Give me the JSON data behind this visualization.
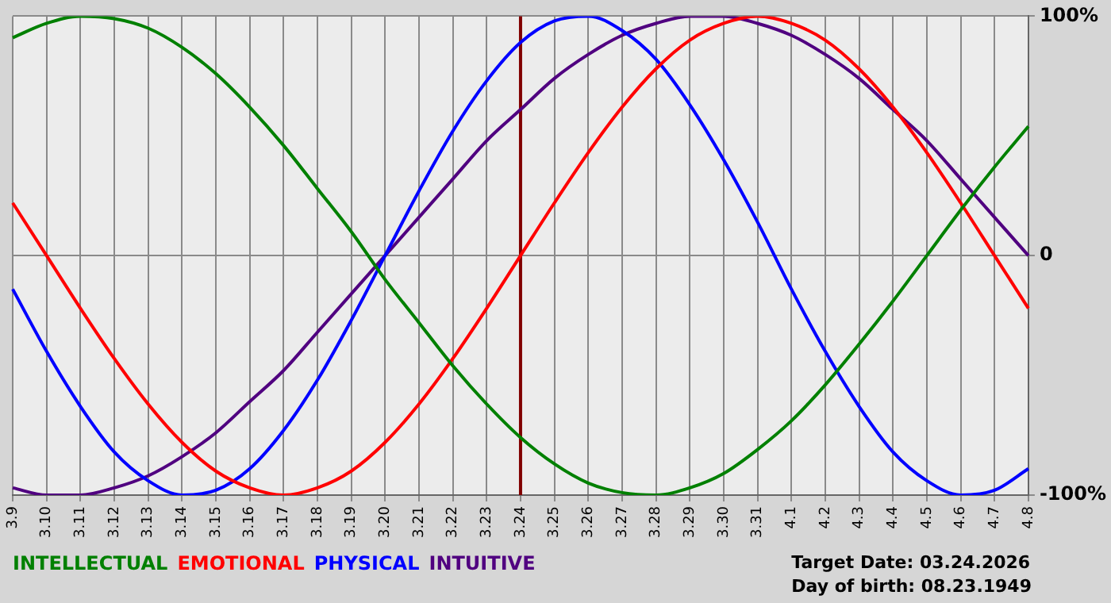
{
  "chart_data": {
    "type": "line",
    "categories": [
      "3.9",
      "3.10",
      "3.11",
      "3.12",
      "3.13",
      "3.14",
      "3.15",
      "3.16",
      "3.17",
      "3.18",
      "3.19",
      "3.20",
      "3.21",
      "3.22",
      "3.23",
      "3.24",
      "3.25",
      "3.26",
      "3.27",
      "3.28",
      "3.29",
      "3.30",
      "3.31",
      "4.1",
      "4.2",
      "4.3",
      "4.4",
      "4.5",
      "4.6",
      "4.7",
      "4.8"
    ],
    "series": [
      {
        "name": "INTELLECTUAL",
        "color": "#008000",
        "values": [
          91,
          97,
          100,
          99,
          95,
          87,
          76,
          62,
          46,
          28,
          10,
          -10,
          -28,
          -46,
          -62,
          -76,
          -87,
          -95,
          -99,
          -100,
          -97,
          -91,
          -81,
          -69,
          -54,
          -37,
          -19,
          0,
          19,
          37,
          54
        ]
      },
      {
        "name": "EMOTIONAL",
        "color": "#ff0000",
        "values": [
          22,
          0,
          -22,
          -43,
          -62,
          -78,
          -90,
          -97,
          -100,
          -97,
          -90,
          -78,
          -62,
          -43,
          -22,
          0,
          22,
          43,
          62,
          78,
          90,
          97,
          100,
          97,
          90,
          78,
          62,
          43,
          22,
          0,
          -22
        ]
      },
      {
        "name": "PHYSICAL",
        "color": "#0000ff",
        "values": [
          -14,
          -40,
          -63,
          -82,
          -94,
          -100,
          -98,
          -89,
          -73,
          -52,
          -27,
          0,
          27,
          52,
          73,
          89,
          98,
          100,
          94,
          82,
          63,
          40,
          14,
          -14,
          -40,
          -63,
          -82,
          -94,
          -100,
          -98,
          -89
        ]
      },
      {
        "name": "INTUITIVE",
        "color": "#500080",
        "values": [
          -97,
          -100,
          -100,
          -97,
          -92,
          -84,
          -74,
          -61,
          -48,
          -32,
          -16,
          0,
          16,
          32,
          48,
          61,
          74,
          84,
          92,
          97,
          100,
          100,
          97,
          92,
          84,
          74,
          61,
          48,
          32,
          16,
          0
        ]
      }
    ],
    "ylim": [
      -100,
      100
    ],
    "yticks": [
      {
        "value": -100,
        "label": "-100%"
      },
      0,
      {
        "value": 100,
        "label": "100%"
      }
    ],
    "ref_lines": [
      {
        "axis": "x",
        "value": "3.24",
        "color": "#800000"
      }
    ],
    "annotations": [
      "Target Date: 03.24.2026",
      "Day of birth: 08.23.1949"
    ],
    "grid": true,
    "legend": "bottom",
    "marker": "none",
    "line_style": "solid"
  }
}
